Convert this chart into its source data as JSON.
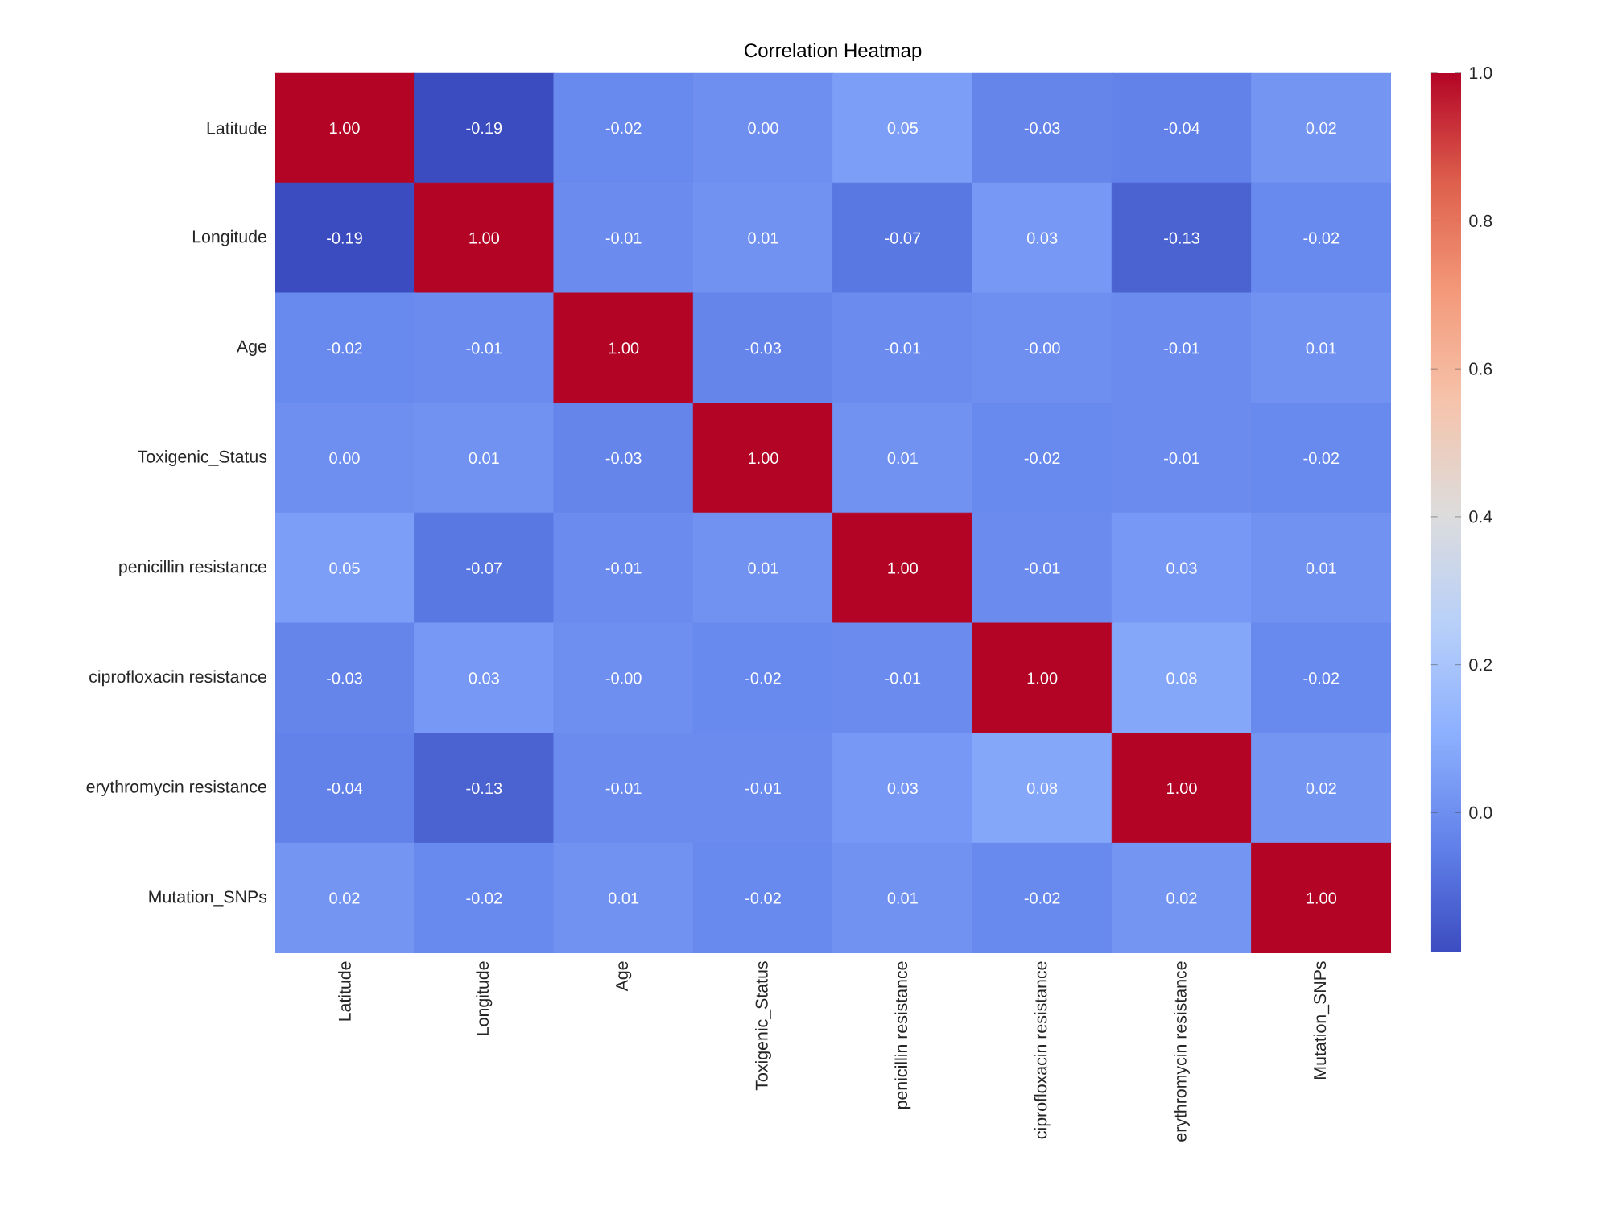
{
  "chart_data": {
    "type": "heatmap",
    "title": "Correlation Heatmap",
    "categories": [
      "Latitude",
      "Longitude",
      "Age",
      "Toxigenic_Status",
      "penicillin resistance",
      "ciprofloxacin resistance",
      "erythromycin resistance",
      "Mutation_SNPs"
    ],
    "y_categories": [
      "Latitude",
      "Longitude",
      "Age",
      "Toxigenic_Status",
      "penicillin resistance",
      "ciprofloxacin resistance",
      "erythromycin resistance",
      "Mutation_SNPs"
    ],
    "cells": [
      [
        1,
        -0.19,
        -0.02,
        0.0,
        0.05,
        -0.03,
        -0.04,
        0.02
      ],
      [
        -0.19,
        1,
        -0.01,
        0.01,
        -0.07,
        0.03,
        -0.13,
        -0.02
      ],
      [
        -0.02,
        -0.01,
        1,
        -0.03,
        -0.01,
        -0.0,
        -0.01,
        0.01
      ],
      [
        0.0,
        0.01,
        -0.03,
        1,
        0.01,
        -0.02,
        -0.01,
        -0.02
      ],
      [
        0.05,
        -0.07,
        -0.01,
        0.01,
        1,
        -0.01,
        0.03,
        0.01
      ],
      [
        -0.03,
        0.03,
        -0.0,
        -0.02,
        -0.01,
        1,
        0.08,
        -0.02
      ],
      [
        -0.04,
        -0.13,
        -0.01,
        -0.01,
        0.03,
        0.08,
        1,
        0.02
      ],
      [
        0.02,
        -0.02,
        0.01,
        -0.02,
        0.01,
        -0.02,
        0.02,
        1
      ]
    ],
    "cell_labels": [
      [
        "1.00",
        "-0.19",
        "-0.02",
        "0.00",
        "0.05",
        "-0.03",
        "-0.04",
        "0.02"
      ],
      [
        "-0.19",
        "1.00",
        "-0.01",
        "0.01",
        "-0.07",
        "0.03",
        "-0.13",
        "-0.02"
      ],
      [
        "-0.02",
        "-0.01",
        "1.00",
        "-0.03",
        "-0.01",
        "-0.00",
        "-0.01",
        "0.01"
      ],
      [
        "0.00",
        "0.01",
        "-0.03",
        "1.00",
        "0.01",
        "-0.02",
        "-0.01",
        "-0.02"
      ],
      [
        "0.05",
        "-0.07",
        "-0.01",
        "0.01",
        "1.00",
        "-0.01",
        "0.03",
        "0.01"
      ],
      [
        "-0.03",
        "0.03",
        "-0.00",
        "-0.02",
        "-0.01",
        "1.00",
        "0.08",
        "-0.02"
      ],
      [
        "-0.04",
        "-0.13",
        "-0.01",
        "-0.01",
        "0.03",
        "0.08",
        "1.00",
        "0.02"
      ],
      [
        "0.02",
        "-0.02",
        "0.01",
        "-0.02",
        "0.01",
        "-0.02",
        "0.02",
        "1.00"
      ]
    ],
    "clim": [
      -0.19,
      1
    ],
    "cticks": [
      {
        "value": 0,
        "label": "0.0"
      },
      {
        "value": 0.2,
        "label": "0.2"
      },
      {
        "value": 0.4,
        "label": "0.4"
      },
      {
        "value": 0.6,
        "label": "0.6"
      },
      {
        "value": 0.8,
        "label": "0.8"
      },
      {
        "value": 1,
        "label": "1.0"
      }
    ]
  }
}
